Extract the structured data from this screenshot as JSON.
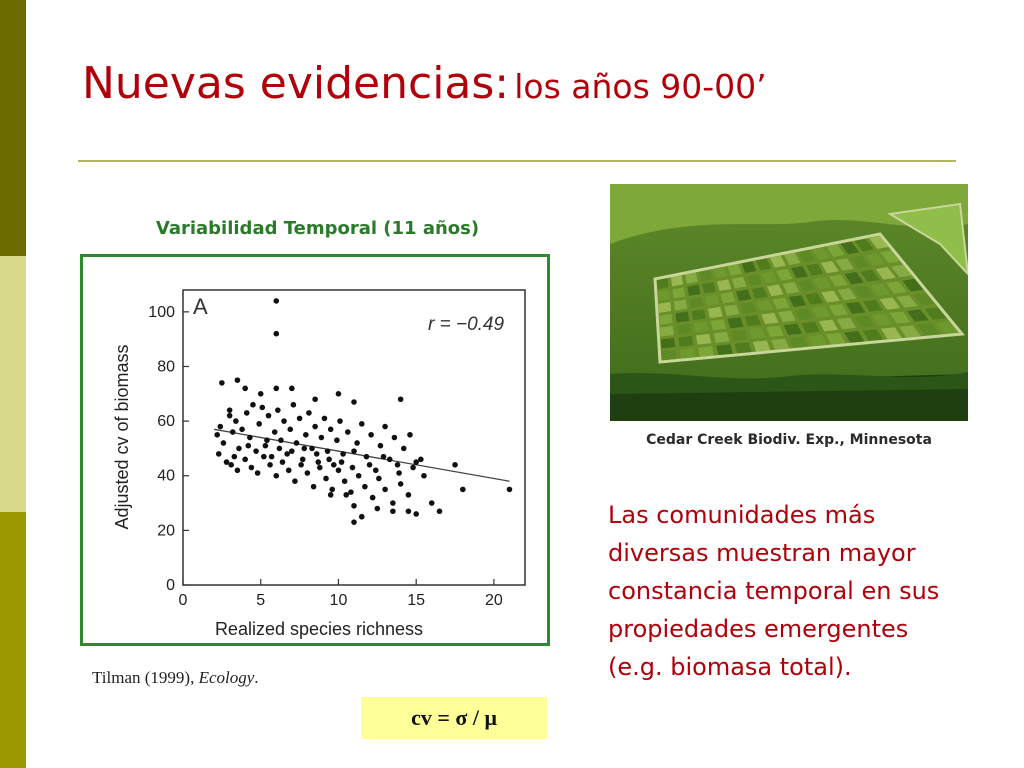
{
  "slide": {
    "title_main": "Nuevas evidencias:",
    "title_sub": "los años 90-00’",
    "chart_caption": "Variabilidad Temporal (11 años)",
    "citation_author": "Tilman (1999),",
    "citation_journal": "Ecology",
    "citation_end": ".",
    "formula": "cv = σ / μ",
    "photo_caption": "Cedar Creek Biodiv. Exp., Minnesota",
    "body_lines": [
      "Las comunidades más",
      "diversas muestran mayor",
      "constancia temporal en sus",
      "propiedades emergentes",
      "(e.g. biomasa total)."
    ],
    "colors": {
      "title": "#b0000a",
      "subtitle": "#2b7a2b",
      "accent_bar_dark": "#6b6b00",
      "accent_bar_light": "#d9d98c",
      "accent_bar_mid": "#9a9a00",
      "chart_border": "#2f8a2f",
      "formula_bg": "#ffff99"
    }
  },
  "chart_data": {
    "type": "scatter",
    "panel_label": "A",
    "annotation": "r = −0.49",
    "xlabel": "Realized species richness",
    "ylabel": "Adjusted cv of biomass",
    "xlim": [
      0,
      22
    ],
    "ylim": [
      0,
      108
    ],
    "xticks": [
      0,
      5,
      10,
      15,
      20
    ],
    "yticks": [
      0,
      20,
      40,
      60,
      80,
      100
    ],
    "trendline": {
      "x": [
        2,
        21
      ],
      "y": [
        57,
        38
      ]
    },
    "points": [
      [
        6,
        104
      ],
      [
        6,
        92
      ],
      [
        2.5,
        74
      ],
      [
        3.5,
        75
      ],
      [
        4,
        72
      ],
      [
        5,
        70
      ],
      [
        6,
        72
      ],
      [
        7,
        72
      ],
      [
        8.5,
        68
      ],
      [
        10,
        70
      ],
      [
        11,
        67
      ],
      [
        14,
        68
      ],
      [
        2.2,
        55
      ],
      [
        2.4,
        58
      ],
      [
        2.6,
        52
      ],
      [
        3,
        62
      ],
      [
        3.2,
        56
      ],
      [
        3.4,
        60
      ],
      [
        3.6,
        50
      ],
      [
        3.8,
        57
      ],
      [
        4.1,
        63
      ],
      [
        4.3,
        54
      ],
      [
        4.5,
        66
      ],
      [
        4.7,
        49
      ],
      [
        4.9,
        59
      ],
      [
        5.1,
        65
      ],
      [
        5.3,
        51
      ],
      [
        5.5,
        62
      ],
      [
        5.7,
        47
      ],
      [
        5.9,
        56
      ],
      [
        6.1,
        64
      ],
      [
        6.3,
        53
      ],
      [
        6.5,
        60
      ],
      [
        6.7,
        48
      ],
      [
        6.9,
        57
      ],
      [
        7.1,
        66
      ],
      [
        7.3,
        52
      ],
      [
        7.5,
        61
      ],
      [
        7.7,
        46
      ],
      [
        7.9,
        55
      ],
      [
        8.1,
        63
      ],
      [
        8.3,
        50
      ],
      [
        8.5,
        58
      ],
      [
        8.7,
        45
      ],
      [
        8.9,
        54
      ],
      [
        9.1,
        61
      ],
      [
        9.3,
        49
      ],
      [
        9.5,
        57
      ],
      [
        9.7,
        44
      ],
      [
        9.9,
        53
      ],
      [
        10.1,
        60
      ],
      [
        10.3,
        48
      ],
      [
        10.6,
        56
      ],
      [
        10.9,
        43
      ],
      [
        11.2,
        52
      ],
      [
        11.5,
        59
      ],
      [
        11.8,
        47
      ],
      [
        12.1,
        55
      ],
      [
        12.4,
        42
      ],
      [
        12.7,
        51
      ],
      [
        13,
        58
      ],
      [
        13.3,
        46
      ],
      [
        13.6,
        54
      ],
      [
        13.9,
        41
      ],
      [
        14.2,
        50
      ],
      [
        14.6,
        55
      ],
      [
        15,
        45
      ],
      [
        15.3,
        46
      ],
      [
        2.3,
        48
      ],
      [
        2.8,
        45
      ],
      [
        3.1,
        44
      ],
      [
        3.5,
        42
      ],
      [
        4,
        46
      ],
      [
        4.4,
        43
      ],
      [
        4.8,
        41
      ],
      [
        5.2,
        47
      ],
      [
        5.6,
        44
      ],
      [
        6,
        40
      ],
      [
        6.4,
        45
      ],
      [
        6.8,
        42
      ],
      [
        7.2,
        38
      ],
      [
        7.6,
        44
      ],
      [
        8,
        41
      ],
      [
        8.4,
        36
      ],
      [
        8.8,
        43
      ],
      [
        9.2,
        39
      ],
      [
        9.6,
        35
      ],
      [
        10,
        42
      ],
      [
        10.4,
        38
      ],
      [
        10.8,
        34
      ],
      [
        11.3,
        40
      ],
      [
        11.7,
        36
      ],
      [
        12.2,
        32
      ],
      [
        12.6,
        39
      ],
      [
        13,
        35
      ],
      [
        13.5,
        30
      ],
      [
        14,
        37
      ],
      [
        14.5,
        33
      ],
      [
        9.5,
        33
      ],
      [
        10.5,
        33
      ],
      [
        11,
        29
      ],
      [
        11.5,
        25
      ],
      [
        12.5,
        28
      ],
      [
        13.5,
        27
      ],
      [
        14.5,
        27
      ],
      [
        15,
        26
      ],
      [
        16,
        30
      ],
      [
        16.5,
        27
      ],
      [
        17.5,
        44
      ],
      [
        18,
        35
      ],
      [
        21,
        35
      ],
      [
        11,
        23
      ],
      [
        3,
        64
      ],
      [
        3.3,
        47
      ],
      [
        4.2,
        51
      ],
      [
        5.4,
        53
      ],
      [
        6.2,
        50
      ],
      [
        7,
        49
      ],
      [
        7.8,
        50
      ],
      [
        8.6,
        48
      ],
      [
        9.4,
        46
      ],
      [
        10.2,
        45
      ],
      [
        11,
        49
      ],
      [
        12,
        44
      ],
      [
        12.9,
        47
      ],
      [
        13.8,
        44
      ],
      [
        14.8,
        43
      ],
      [
        15.5,
        40
      ]
    ]
  }
}
